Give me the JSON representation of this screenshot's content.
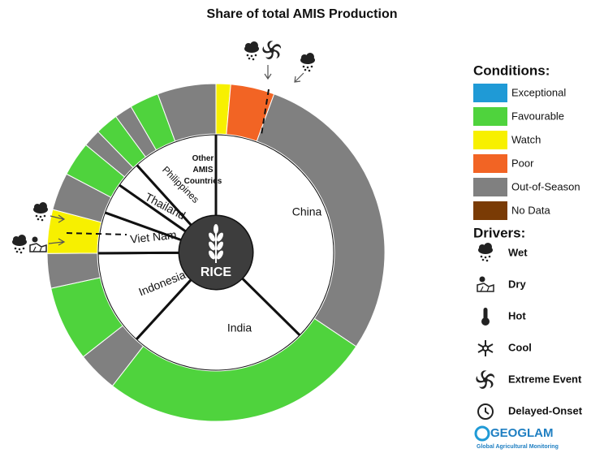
{
  "chart_data": {
    "type": "sunburst",
    "title": "Share of total AMIS Production",
    "center_label": "RICE",
    "categories": [
      "China",
      "India",
      "Indonesia",
      "Viet Nam",
      "Thailand",
      "Philippines",
      "Other AMIS Countries"
    ],
    "values": [
      37.4,
      24.4,
      13.1,
      5.6,
      4.2,
      3.6,
      11.7
    ],
    "conditions_title": "Conditions:",
    "conditions": [
      {
        "name": "Exceptional",
        "color": "#1f9ad6"
      },
      {
        "name": "Favourable",
        "color": "#4fd33d"
      },
      {
        "name": "Watch",
        "color": "#f7f000"
      },
      {
        "name": "Poor",
        "color": "#f26424"
      },
      {
        "name": "Out-of-Season",
        "color": "#808080"
      },
      {
        "name": "No Data",
        "color": "#7a3b05"
      }
    ],
    "segments": [
      {
        "condition": "Watch",
        "value": 1.4
      },
      {
        "condition": "Poor",
        "value": 4.2
      },
      {
        "condition": "Out-of-Season",
        "value": 28.8
      },
      {
        "condition": "Favourable",
        "value": 26.1
      },
      {
        "condition": "Out-of-Season",
        "value": 3.9
      },
      {
        "condition": "Favourable",
        "value": 7.2
      },
      {
        "condition": "Out-of-Season",
        "value": 3.3
      },
      {
        "condition": "Watch",
        "value": 4.2
      },
      {
        "condition": "Out-of-Season",
        "value": 3.6
      },
      {
        "condition": "Favourable",
        "value": 3.3
      },
      {
        "condition": "Out-of-Season",
        "value": 1.7
      },
      {
        "condition": "Favourable",
        "value": 2.2
      },
      {
        "condition": "Out-of-Season",
        "value": 1.7
      },
      {
        "condition": "Favourable",
        "value": 2.8
      },
      {
        "condition": "Out-of-Season",
        "value": 5.6
      }
    ],
    "drivers_title": "Drivers:",
    "drivers": [
      "Wet",
      "Dry",
      "Hot",
      "Cool",
      "Extreme Event",
      "Delayed-Onset"
    ],
    "logo": "GEOGLAM",
    "logo_subtitle": "Global Agricultural Monitoring"
  }
}
